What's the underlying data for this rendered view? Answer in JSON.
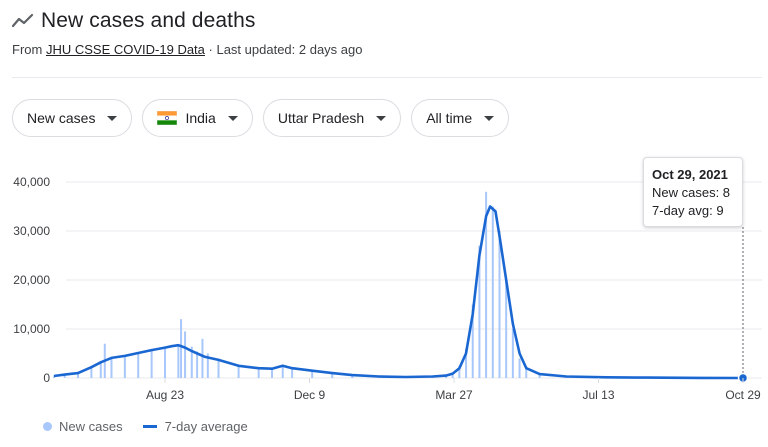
{
  "header": {
    "title": "New cases and deaths",
    "source_prefix": "From",
    "source_link": "JHU CSSE COVID-19 Data",
    "updated": "· Last updated: 2 days ago",
    "icon": "trending-line-icon"
  },
  "filters": {
    "metric": "New cases",
    "country": "India",
    "country_flag_icon": "india-flag-icon",
    "region": "Uttar Pradesh",
    "range": "All time"
  },
  "tooltip": {
    "date": "Oct 29, 2021",
    "new_cases": "New cases: 8",
    "avg": "7-day avg: 9"
  },
  "legend": {
    "cases": "New cases",
    "avg": "7-day average"
  },
  "colors": {
    "bars": "#a8c7fa",
    "line": "#1a67d2",
    "grid": "#e8eaed"
  },
  "chart_data": {
    "type": "bar",
    "title": "",
    "xlabel": "",
    "ylabel": "",
    "ylim": [
      0,
      40000
    ],
    "yticks": [
      "0",
      "10,000",
      "20,000",
      "30,000",
      "40,000"
    ],
    "xticks": [
      "Aug 23",
      "Dec 9",
      "Mar 27",
      "Jul 13",
      "Oct 29"
    ],
    "x_days": [
      0,
      108,
      216,
      324,
      432
    ],
    "series": [
      {
        "name": "New cases",
        "kind": "bar",
        "points": [
          [
            -83,
            300
          ],
          [
            -75,
            700
          ],
          [
            -65,
            1000
          ],
          [
            -55,
            2500
          ],
          [
            -48,
            3500
          ],
          [
            -45,
            7000
          ],
          [
            -40,
            4200
          ],
          [
            -30,
            4600
          ],
          [
            -20,
            5200
          ],
          [
            -10,
            5800
          ],
          [
            0,
            6100
          ],
          [
            10,
            6800
          ],
          [
            12,
            12000
          ],
          [
            15,
            9500
          ],
          [
            20,
            6400
          ],
          [
            24,
            5400
          ],
          [
            28,
            8000
          ],
          [
            32,
            5000
          ],
          [
            40,
            4000
          ],
          [
            55,
            2600
          ],
          [
            70,
            2000
          ],
          [
            80,
            1900
          ],
          [
            88,
            2500
          ],
          [
            95,
            2000
          ],
          [
            110,
            1500
          ],
          [
            125,
            1000
          ],
          [
            140,
            700
          ],
          [
            160,
            400
          ],
          [
            180,
            300
          ],
          [
            200,
            300
          ],
          [
            210,
            500
          ],
          [
            215,
            900
          ],
          [
            220,
            2500
          ],
          [
            225,
            6000
          ],
          [
            230,
            15000
          ],
          [
            235,
            27000
          ],
          [
            240,
            38000
          ],
          [
            245,
            35000
          ],
          [
            250,
            30000
          ],
          [
            255,
            20000
          ],
          [
            260,
            10000
          ],
          [
            265,
            4000
          ],
          [
            270,
            1800
          ],
          [
            280,
            700
          ],
          [
            300,
            300
          ],
          [
            330,
            150
          ],
          [
            360,
            90
          ],
          [
            400,
            30
          ],
          [
            432,
            8
          ]
        ]
      },
      {
        "name": "7-day average",
        "kind": "line",
        "points": [
          [
            -83,
            400
          ],
          [
            -75,
            700
          ],
          [
            -65,
            1000
          ],
          [
            -55,
            2200
          ],
          [
            -48,
            3200
          ],
          [
            -40,
            4100
          ],
          [
            -30,
            4500
          ],
          [
            -20,
            5100
          ],
          [
            -10,
            5700
          ],
          [
            0,
            6200
          ],
          [
            5,
            6500
          ],
          [
            10,
            6700
          ],
          [
            15,
            6200
          ],
          [
            20,
            5500
          ],
          [
            25,
            4900
          ],
          [
            30,
            4300
          ],
          [
            40,
            3700
          ],
          [
            55,
            2500
          ],
          [
            70,
            2000
          ],
          [
            80,
            1900
          ],
          [
            88,
            2500
          ],
          [
            95,
            2000
          ],
          [
            110,
            1500
          ],
          [
            125,
            1000
          ],
          [
            140,
            600
          ],
          [
            160,
            300
          ],
          [
            180,
            200
          ],
          [
            200,
            300
          ],
          [
            210,
            500
          ],
          [
            215,
            900
          ],
          [
            220,
            2000
          ],
          [
            225,
            5000
          ],
          [
            230,
            13000
          ],
          [
            235,
            25000
          ],
          [
            240,
            33000
          ],
          [
            243,
            35000
          ],
          [
            247,
            34000
          ],
          [
            250,
            29000
          ],
          [
            255,
            20000
          ],
          [
            260,
            11000
          ],
          [
            265,
            5000
          ],
          [
            270,
            2000
          ],
          [
            280,
            800
          ],
          [
            300,
            300
          ],
          [
            330,
            150
          ],
          [
            360,
            80
          ],
          [
            400,
            30
          ],
          [
            432,
            9
          ]
        ]
      }
    ]
  }
}
